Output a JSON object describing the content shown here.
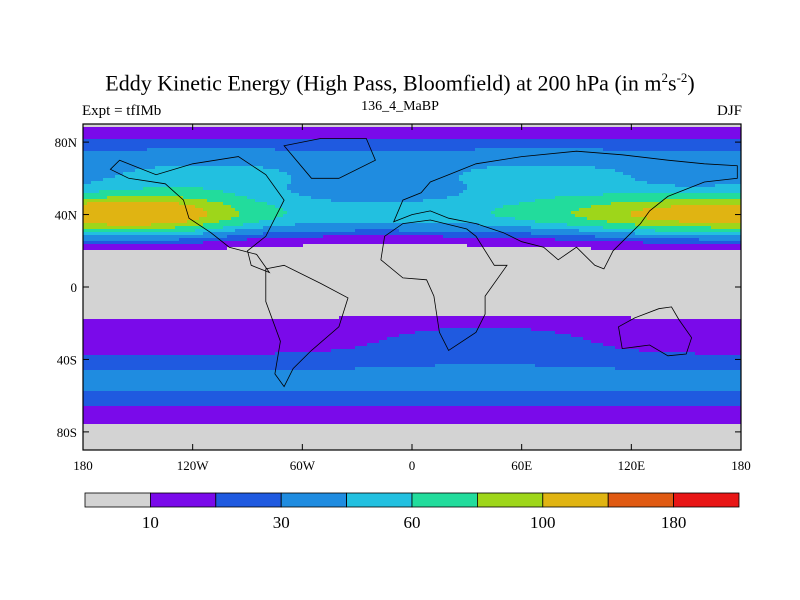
{
  "chart_data": {
    "type": "heatmap",
    "title": "Eddy Kinetic Energy (High Pass, Bloomfield) at 200 hPa (in m",
    "title_sup1": "2",
    "title_mid": "s",
    "title_sup2": "-2",
    "title_end": ")",
    "left_label": "Expt = tfIMb",
    "center_label": "136_4_MaBP",
    "right_label": "DJF",
    "x_ticks": [
      "180",
      "120W",
      "60W",
      "0",
      "60E",
      "120E",
      "180"
    ],
    "x_tick_values": [
      -180,
      -120,
      -60,
      0,
      60,
      120,
      180
    ],
    "y_ticks": [
      "80N",
      "40N",
      "0",
      "40S",
      "80S"
    ],
    "y_tick_values": [
      80,
      40,
      0,
      -40,
      -80
    ],
    "xlim": [
      -180,
      180
    ],
    "ylim": [
      -90,
      90
    ],
    "levels": [
      10,
      20,
      30,
      45,
      60,
      80,
      100,
      140,
      180
    ],
    "colorbar_labels": [
      "10",
      "30",
      "60",
      "100",
      "180"
    ],
    "colorbar_label_levels": [
      10,
      30,
      60,
      100,
      180
    ],
    "colors": [
      "#d3d3d3",
      "#7a0aea",
      "#1f5ae0",
      "#1f8ce0",
      "#22c0e0",
      "#22dc9c",
      "#9ed61a",
      "#e0b412",
      "#e05a12",
      "#e81616"
    ],
    "approx_field_by_latitude": [
      {
        "lat": 85,
        "value": 25
      },
      {
        "lat": 70,
        "value": 35
      },
      {
        "lat": 55,
        "value": 55
      },
      {
        "lat": 40,
        "value": 100
      },
      {
        "lat": 25,
        "value": 25
      },
      {
        "lat": 10,
        "value": 15
      },
      {
        "lat": 0,
        "value": 8
      },
      {
        "lat": -10,
        "value": 8
      },
      {
        "lat": -25,
        "value": 18
      },
      {
        "lat": -45,
        "value": 30
      },
      {
        "lat": -60,
        "value": 35
      },
      {
        "lat": -75,
        "value": 20
      },
      {
        "lat": -88,
        "value": 8
      }
    ]
  }
}
